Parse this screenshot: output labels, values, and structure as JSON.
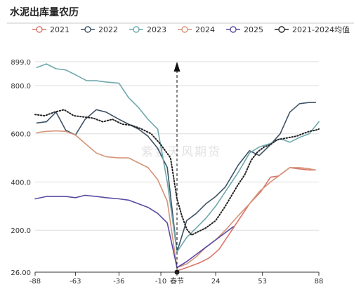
{
  "chart_data": {
    "type": "line",
    "title": "水泥出库量农历",
    "xlabel": "",
    "ylabel": "",
    "xlim": [
      -88,
      88
    ],
    "ylim": [
      26,
      899
    ],
    "x_ticks": [
      {
        "value": -88,
        "label": "-88"
      },
      {
        "value": -63,
        "label": "-63"
      },
      {
        "value": -36,
        "label": "-36"
      },
      {
        "value": -10,
        "label": "-10"
      },
      {
        "value": 0,
        "label": "春节"
      },
      {
        "value": 24,
        "label": "24"
      },
      {
        "value": 53,
        "label": "53"
      },
      {
        "value": 88,
        "label": "88"
      }
    ],
    "y_ticks": [
      {
        "value": 26,
        "label": "26.00"
      },
      {
        "value": 200,
        "label": "200.0"
      },
      {
        "value": 400,
        "label": "400.0"
      },
      {
        "value": 600,
        "label": "600.0"
      },
      {
        "value": 800,
        "label": "800.0"
      },
      {
        "value": 899,
        "label": "899.0"
      }
    ],
    "grid": true,
    "legend_position": "top",
    "watermark": "紫金天风期货",
    "series": [
      {
        "name": "2021",
        "color": "#d9746a",
        "dashed": false,
        "x": [
          -1,
          3,
          8,
          14,
          20,
          26,
          32,
          38,
          45,
          52,
          58,
          63,
          70,
          75,
          82,
          85
        ],
        "y": [
          30,
          38,
          50,
          65,
          85,
          120,
          180,
          240,
          310,
          360,
          420,
          425,
          460,
          455,
          450,
          450
        ]
      },
      {
        "name": "2022",
        "color": "#3e5266",
        "dashed": false,
        "x": [
          -87,
          -81,
          -75,
          -69,
          -63,
          -57,
          -50,
          -44,
          -36,
          -30,
          -24,
          -18,
          -12,
          -6,
          0,
          6,
          12,
          18,
          24,
          30,
          38,
          45,
          51,
          58,
          64,
          70,
          76,
          82,
          86
        ],
        "y": [
          645,
          650,
          690,
          615,
          595,
          660,
          700,
          690,
          660,
          640,
          620,
          590,
          540,
          460,
          110,
          240,
          270,
          310,
          340,
          380,
          470,
          530,
          510,
          555,
          600,
          690,
          725,
          730,
          730
        ]
      },
      {
        "name": "2023",
        "color": "#6fa8ad",
        "dashed": false,
        "x": [
          -87,
          -81,
          -75,
          -69,
          -63,
          -56,
          -50,
          -44,
          -36,
          -30,
          -24,
          -18,
          -12,
          -6,
          0,
          6,
          12,
          18,
          24,
          30,
          38,
          45,
          51,
          58,
          64,
          70,
          76,
          82,
          88
        ],
        "y": [
          875,
          890,
          870,
          865,
          845,
          820,
          820,
          815,
          810,
          750,
          710,
          660,
          620,
          400,
          110,
          170,
          210,
          250,
          300,
          360,
          440,
          520,
          545,
          560,
          580,
          565,
          585,
          600,
          650
        ]
      },
      {
        "name": "2024",
        "color": "#d69478",
        "dashed": false,
        "x": [
          -87,
          -81,
          -75,
          -69,
          -63,
          -57,
          -50,
          -44,
          -36,
          -30,
          -24,
          -18,
          -12,
          -6,
          0,
          6,
          12,
          18,
          24,
          30,
          38,
          45,
          51,
          58,
          64,
          70,
          76,
          82,
          86
        ],
        "y": [
          605,
          610,
          612,
          610,
          595,
          560,
          520,
          505,
          500,
          500,
          480,
          460,
          410,
          320,
          45,
          60,
          90,
          130,
          160,
          200,
          260,
          310,
          360,
          400,
          430,
          460,
          460,
          455,
          450
        ]
      },
      {
        "name": "2025",
        "color": "#5b4aa2",
        "dashed": false,
        "x": [
          -88,
          -81,
          -75,
          -69,
          -63,
          -57,
          -50,
          -44,
          -36,
          -30,
          -24,
          -18,
          -12,
          -6,
          0,
          6,
          12,
          18,
          24,
          30,
          35
        ],
        "y": [
          330,
          340,
          340,
          340,
          335,
          345,
          340,
          335,
          330,
          325,
          310,
          295,
          270,
          230,
          45,
          70,
          100,
          130,
          160,
          190,
          215
        ]
      },
      {
        "name": "2021-2024均值",
        "color": "#222222",
        "dashed": true,
        "x": [
          -88,
          -82,
          -76,
          -70,
          -64,
          -58,
          -52,
          -46,
          -40,
          -34,
          -28,
          -22,
          -16,
          -10,
          -4,
          0,
          3,
          6,
          9,
          12,
          15,
          18,
          21,
          24,
          27,
          30,
          34,
          38,
          42,
          46,
          50,
          54,
          58,
          62,
          66,
          70,
          74,
          78,
          82,
          86,
          88
        ],
        "y": [
          680,
          675,
          690,
          700,
          675,
          670,
          665,
          650,
          660,
          640,
          635,
          620,
          600,
          555,
          500,
          330,
          260,
          205,
          180,
          190,
          200,
          210,
          225,
          240,
          270,
          300,
          345,
          390,
          430,
          490,
          525,
          545,
          555,
          575,
          580,
          585,
          590,
          600,
          610,
          615,
          620
        ]
      }
    ],
    "annotation": {
      "x": 0,
      "label": "春节"
    }
  }
}
